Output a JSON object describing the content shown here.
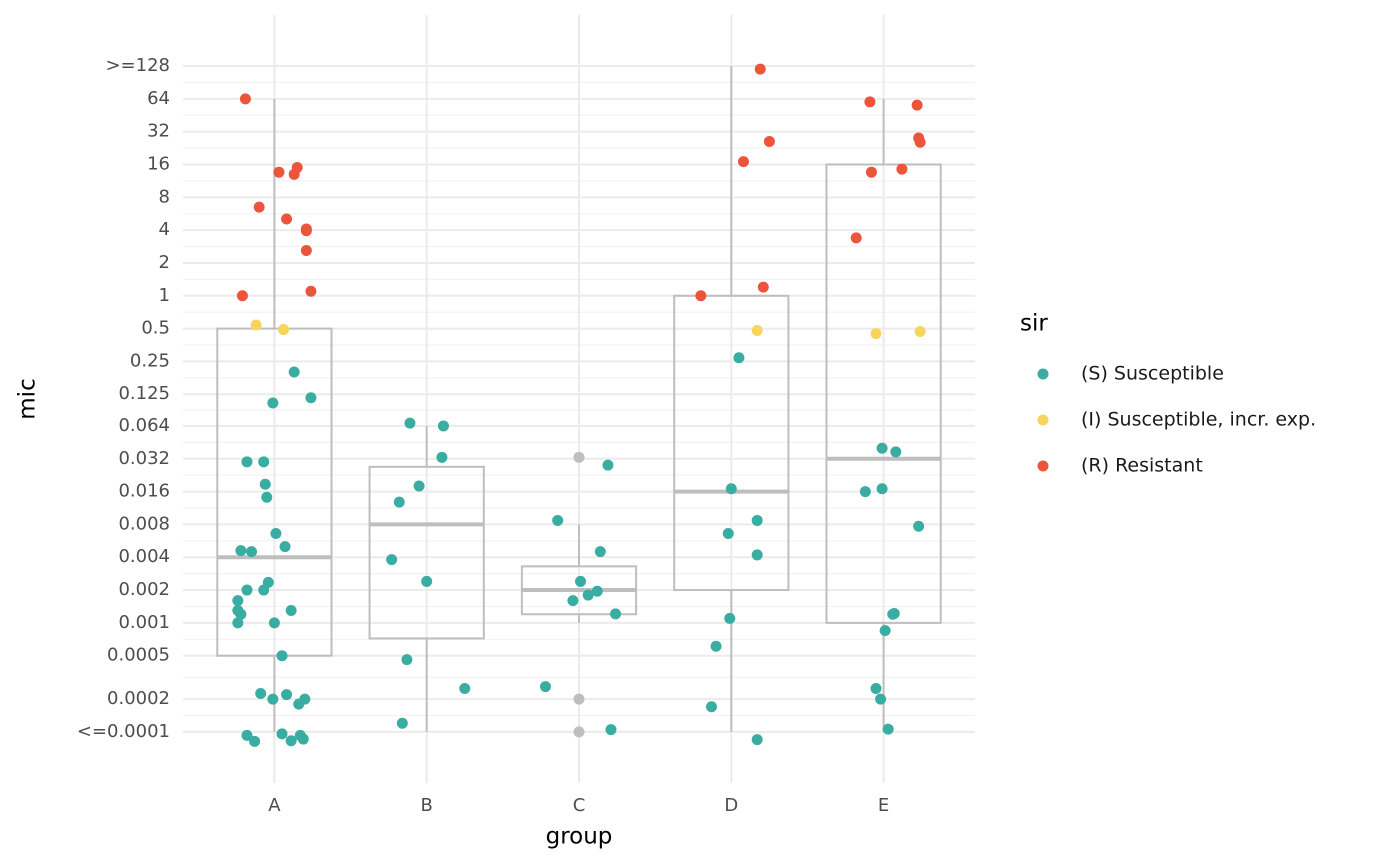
{
  "chart_data": {
    "type": "box",
    "x_label": "group",
    "y_label": "mic",
    "legend_title": "sir",
    "legend_position": "right",
    "y_scale": "log2",
    "grid": true,
    "categories": [
      "A",
      "B",
      "C",
      "D",
      "E"
    ],
    "xlim": [
      0.4,
      5.6
    ],
    "ylim": [
      3.4e-05,
      376
    ],
    "yticks": [
      {
        "value": 0.0001,
        "label": "<=0.0001"
      },
      0.0002,
      0.0005,
      0.001,
      0.002,
      0.004,
      0.008,
      0.016,
      0.032,
      0.064,
      0.125,
      0.25,
      0.5,
      1,
      2,
      4,
      8,
      16,
      32,
      64,
      {
        "value": 128,
        "label": ">=128"
      }
    ],
    "box_color": "#bebebe",
    "boxes": [
      {
        "whisker_low": 0.0001,
        "q1": 0.0005,
        "median": 0.004,
        "q3": 0.5,
        "whisker_high": 64
      },
      {
        "whisker_low": 0.0001,
        "q1": 0.00072,
        "median": 0.008,
        "q3": 0.027,
        "whisker_high": 0.064
      },
      {
        "whisker_low": 0.001,
        "q1": 0.0012,
        "median": 0.002,
        "q3": 0.0033,
        "whisker_high": 0.008
      },
      {
        "whisker_low": 0.0001,
        "q1": 0.002,
        "median": 0.016,
        "q3": 1,
        "whisker_high": 128
      },
      {
        "whisker_low": 0.0001,
        "q1": 0.001,
        "median": 0.032,
        "q3": 16,
        "whisker_high": 64
      }
    ],
    "series": [
      {
        "name": "(S) Susceptible",
        "color": "#3aada3",
        "x": [
          1.13,
          0.99,
          1.24,
          0.82,
          0.93,
          0.94,
          0.95,
          1.01,
          0.78,
          0.85,
          1.07,
          0.96,
          0.82,
          0.93,
          0.76,
          0.76,
          0.78,
          1.11,
          0.76,
          1.0,
          1.05,
          0.91,
          1.08,
          0.99,
          1.2,
          1.16,
          1.05,
          0.82,
          1.17,
          0.87,
          1.11,
          1.19,
          1.89,
          2.11,
          2.1,
          1.95,
          1.82,
          1.77,
          2.0,
          1.87,
          2.25,
          1.84,
          2.86,
          3.19,
          3.14,
          3.01,
          3.12,
          3.06,
          2.96,
          3.24,
          2.78,
          3.21,
          4.05,
          4.0,
          4.17,
          3.98,
          4.17,
          3.99,
          3.9,
          3.87,
          4.17,
          4.99,
          5.08,
          4.99,
          4.88,
          5.23,
          5.06,
          5.07,
          5.01,
          4.95,
          4.98,
          5.03
        ],
        "values": [
          0.2,
          0.104,
          0.116,
          0.03,
          0.03,
          0.0187,
          0.0142,
          0.0066,
          0.0046,
          0.0045,
          0.005,
          0.00235,
          0.002,
          0.002,
          0.0016,
          0.0013,
          0.0012,
          0.0013,
          0.001,
          0.001,
          0.0005,
          0.000225,
          0.00022,
          0.0002,
          0.0002,
          0.00018,
          9.6e-05,
          9.3e-05,
          9.3e-05,
          8.2e-05,
          8.3e-05,
          8.6e-05,
          0.068,
          0.064,
          0.033,
          0.018,
          0.0128,
          0.0038,
          0.0024,
          0.00046,
          0.00025,
          0.00012,
          0.0087,
          0.028,
          0.0045,
          0.0024,
          0.00195,
          0.0018,
          0.0016,
          0.00121,
          0.00026,
          0.000105,
          0.27,
          0.017,
          0.0087,
          0.0066,
          0.0042,
          0.0011,
          0.00061,
          0.00017,
          8.5e-05,
          0.04,
          0.037,
          0.017,
          0.016,
          0.0077,
          0.0012,
          0.00122,
          0.00085,
          0.00025,
          0.0002,
          0.000106
        ]
      },
      {
        "name": "(I) Susceptible, incr. exp.",
        "color": "#f5d55c",
        "x": [
          0.88,
          1.06,
          4.17,
          4.95,
          5.24
        ],
        "values": [
          0.54,
          0.49,
          0.48,
          0.45,
          0.47
        ]
      },
      {
        "name": "(R) Resistant",
        "color": "#ec553b",
        "x": [
          0.81,
          0.9,
          1.03,
          1.13,
          1.15,
          1.08,
          1.21,
          1.21,
          1.21,
          0.79,
          1.24,
          4.19,
          4.25,
          4.08,
          3.8,
          4.21,
          4.91,
          5.22,
          5.23,
          5.24,
          4.92,
          5.12,
          4.82
        ],
        "values": [
          64,
          6.5,
          13.6,
          13,
          15,
          5.06,
          4.1,
          3.95,
          2.6,
          1,
          1.1,
          120,
          26,
          17,
          1,
          1.2,
          60,
          56,
          28,
          25.6,
          13.6,
          14.5,
          3.4
        ]
      },
      {
        "color": "#bebebe",
        "x": [
          3.0,
          3.0,
          3.0
        ],
        "values": [
          0.033,
          0.0002,
          0.0001
        ]
      }
    ]
  }
}
